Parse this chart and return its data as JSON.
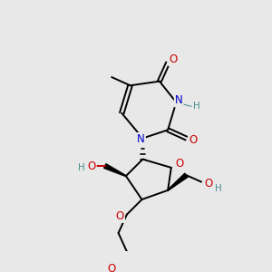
{
  "bg_color": "#e8e8e8",
  "bond_color": "#000000",
  "atom_colors": {
    "O": "#cc0000",
    "N": "#0000cc",
    "C": "#000000",
    "H": "#4a9090"
  },
  "figsize": [
    3.0,
    3.0
  ],
  "dpi": 100,
  "lw": 1.4,
  "fs": 8.5,
  "fs_small": 7.5
}
